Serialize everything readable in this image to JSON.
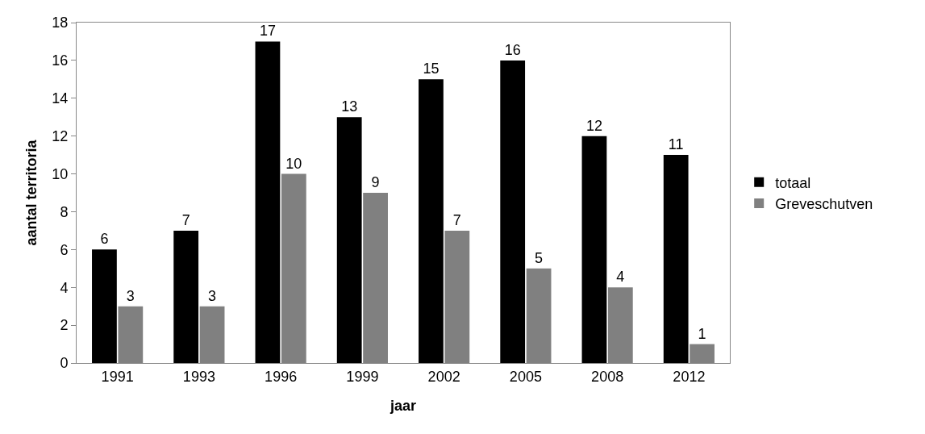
{
  "chart_data": {
    "type": "bar",
    "xlabel": "jaar",
    "ylabel": "aantal territoria",
    "categories": [
      "1991",
      "1993",
      "1996",
      "1999",
      "2002",
      "2005",
      "2008",
      "2012"
    ],
    "series": [
      {
        "name": "totaal",
        "color": "#000000",
        "values": [
          6,
          7,
          17,
          13,
          15,
          16,
          12,
          11
        ]
      },
      {
        "name": "Greveschutven",
        "color": "#808080",
        "values": [
          3,
          3,
          10,
          9,
          7,
          5,
          4,
          1
        ]
      }
    ],
    "ylim": [
      0,
      18
    ],
    "yticks": [
      0,
      2,
      4,
      6,
      8,
      10,
      12,
      14,
      16,
      18
    ],
    "grid": false,
    "legend": "right",
    "data_labels": true
  }
}
